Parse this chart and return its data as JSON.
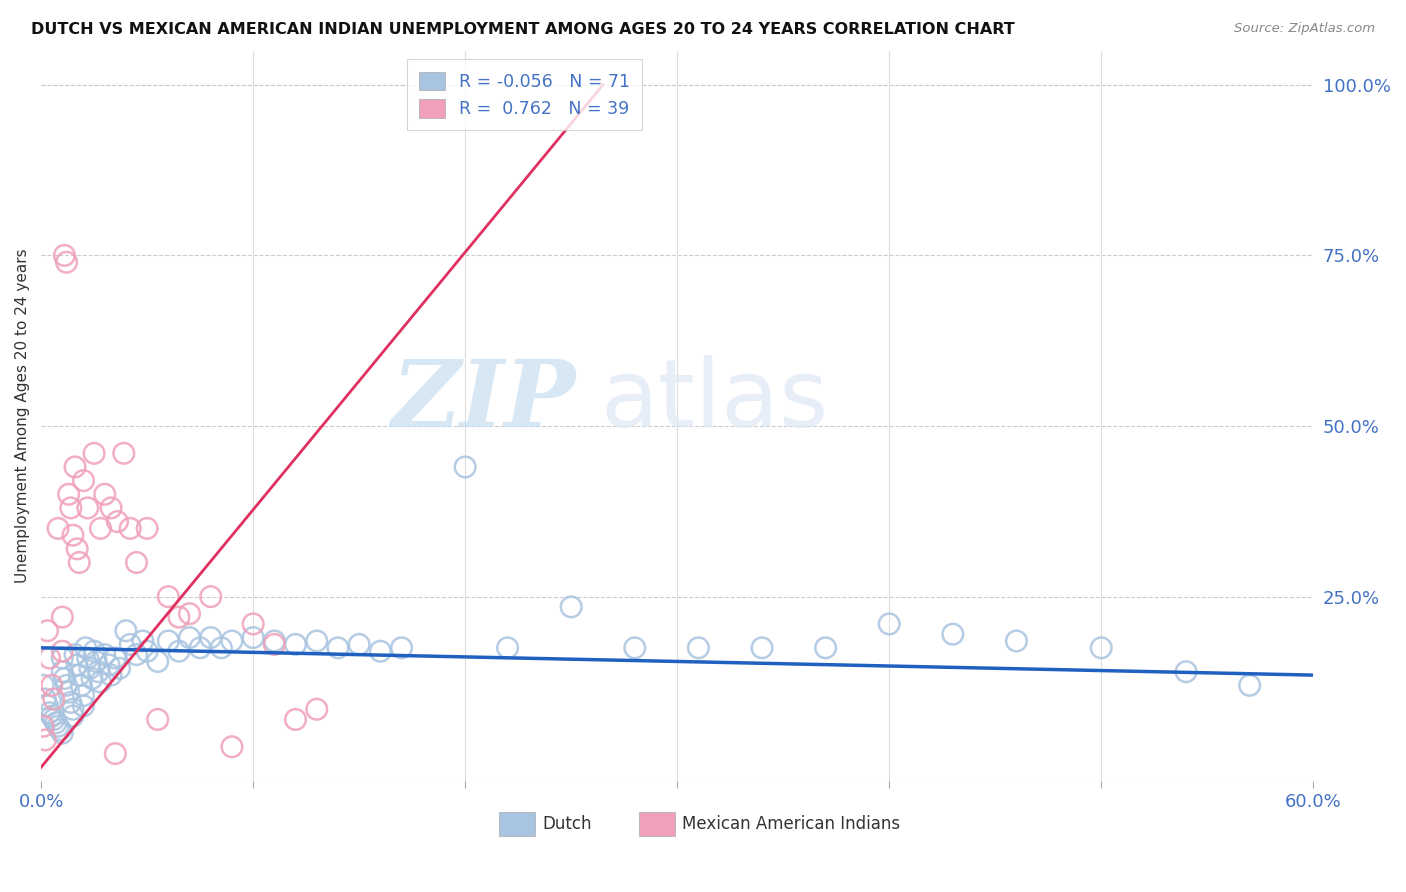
{
  "title": "DUTCH VS MEXICAN AMERICAN INDIAN UNEMPLOYMENT AMONG AGES 20 TO 24 YEARS CORRELATION CHART",
  "source": "Source: ZipAtlas.com",
  "ylabel": "Unemployment Among Ages 20 to 24 years",
  "xlim": [
    0.0,
    0.6
  ],
  "ylim": [
    -0.02,
    1.05
  ],
  "dutch_color": "#a8c4e0",
  "mexican_color": "#f0a0b8",
  "dutch_line_color": "#2060c0",
  "mexican_line_color": "#e03060",
  "dutch_R": -0.056,
  "dutch_N": 71,
  "mexican_R": 0.762,
  "mexican_N": 39,
  "legend_dutch_label": "Dutch",
  "legend_mexican_label": "Mexican American Indians",
  "watermark_zip": "ZIP",
  "watermark_atlas": "atlas",
  "background_color": "#ffffff",
  "grid_color": "#cccccc",
  "tick_label_color": "#4472c4",
  "dutch_x": [
    0.001,
    0.002,
    0.003,
    0.004,
    0.005,
    0.006,
    0.007,
    0.008,
    0.009,
    0.01,
    0.01,
    0.01,
    0.011,
    0.012,
    0.013,
    0.014,
    0.015,
    0.015,
    0.016,
    0.017,
    0.018,
    0.019,
    0.02,
    0.02,
    0.021,
    0.022,
    0.023,
    0.024,
    0.025,
    0.026,
    0.027,
    0.028,
    0.03,
    0.032,
    0.033,
    0.035,
    0.037,
    0.04,
    0.042,
    0.045,
    0.048,
    0.05,
    0.055,
    0.06,
    0.065,
    0.07,
    0.075,
    0.08,
    0.085,
    0.09,
    0.1,
    0.11,
    0.12,
    0.13,
    0.14,
    0.15,
    0.16,
    0.17,
    0.2,
    0.22,
    0.25,
    0.28,
    0.31,
    0.34,
    0.37,
    0.4,
    0.43,
    0.46,
    0.5,
    0.54,
    0.57
  ],
  "dutch_y": [
    0.12,
    0.1,
    0.09,
    0.08,
    0.075,
    0.07,
    0.065,
    0.06,
    0.055,
    0.05,
    0.14,
    0.16,
    0.13,
    0.12,
    0.11,
    0.095,
    0.085,
    0.075,
    0.165,
    0.15,
    0.135,
    0.12,
    0.105,
    0.09,
    0.175,
    0.16,
    0.145,
    0.13,
    0.17,
    0.155,
    0.14,
    0.125,
    0.165,
    0.15,
    0.135,
    0.16,
    0.145,
    0.2,
    0.18,
    0.165,
    0.185,
    0.17,
    0.155,
    0.185,
    0.17,
    0.19,
    0.175,
    0.19,
    0.175,
    0.185,
    0.19,
    0.185,
    0.18,
    0.185,
    0.175,
    0.18,
    0.17,
    0.175,
    0.44,
    0.175,
    0.235,
    0.175,
    0.175,
    0.175,
    0.175,
    0.21,
    0.195,
    0.185,
    0.175,
    0.14,
    0.12
  ],
  "mexican_x": [
    0.001,
    0.002,
    0.003,
    0.004,
    0.005,
    0.006,
    0.008,
    0.01,
    0.01,
    0.011,
    0.012,
    0.013,
    0.014,
    0.015,
    0.016,
    0.017,
    0.018,
    0.02,
    0.022,
    0.025,
    0.028,
    0.03,
    0.033,
    0.036,
    0.039,
    0.042,
    0.045,
    0.05,
    0.06,
    0.065,
    0.07,
    0.08,
    0.09,
    0.1,
    0.11,
    0.12,
    0.13,
    0.055,
    0.035
  ],
  "mexican_y": [
    0.06,
    0.04,
    0.2,
    0.16,
    0.12,
    0.1,
    0.35,
    0.22,
    0.17,
    0.75,
    0.74,
    0.4,
    0.38,
    0.34,
    0.44,
    0.32,
    0.3,
    0.42,
    0.38,
    0.46,
    0.35,
    0.4,
    0.38,
    0.36,
    0.46,
    0.35,
    0.3,
    0.35,
    0.25,
    0.22,
    0.225,
    0.25,
    0.03,
    0.21,
    0.18,
    0.07,
    0.085,
    0.07,
    0.02
  ],
  "dutch_trend_x": [
    0.0,
    0.6
  ],
  "dutch_trend_y": [
    0.175,
    0.135
  ],
  "mexican_trend_x": [
    0.0,
    0.265
  ],
  "mexican_trend_y": [
    0.0,
    1.0
  ]
}
